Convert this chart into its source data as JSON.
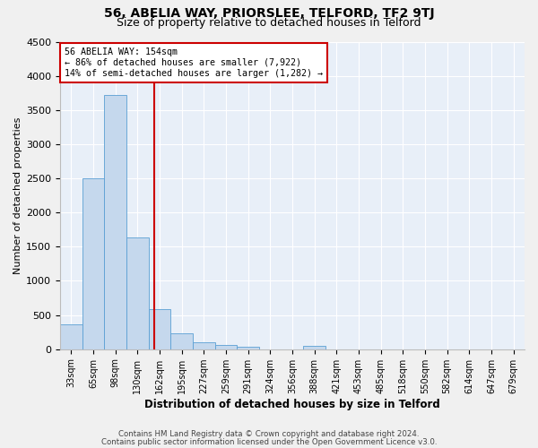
{
  "title": "56, ABELIA WAY, PRIORSLEE, TELFORD, TF2 9TJ",
  "subtitle": "Size of property relative to detached houses in Telford",
  "xlabel": "Distribution of detached houses by size in Telford",
  "ylabel": "Number of detached properties",
  "bin_labels": [
    "33sqm",
    "65sqm",
    "98sqm",
    "130sqm",
    "162sqm",
    "195sqm",
    "227sqm",
    "259sqm",
    "291sqm",
    "324sqm",
    "356sqm",
    "388sqm",
    "421sqm",
    "453sqm",
    "485sqm",
    "518sqm",
    "550sqm",
    "582sqm",
    "614sqm",
    "647sqm",
    "679sqm"
  ],
  "bar_values": [
    370,
    2500,
    3720,
    1630,
    590,
    230,
    105,
    60,
    35,
    0,
    0,
    55,
    0,
    0,
    0,
    0,
    0,
    0,
    0,
    0,
    0
  ],
  "bar_color": "#c5d8ed",
  "bar_edge_color": "#5a9fd4",
  "ylim": [
    0,
    4500
  ],
  "yticks": [
    0,
    500,
    1000,
    1500,
    2000,
    2500,
    3000,
    3500,
    4000,
    4500
  ],
  "property_label": "56 ABELIA WAY: 154sqm",
  "annotation_line1": "← 86% of detached houses are smaller (7,922)",
  "annotation_line2": "14% of semi-detached houses are larger (1,282) →",
  "vline_color": "#cc0000",
  "annotation_box_edge": "#cc0000",
  "footer_line1": "Contains HM Land Registry data © Crown copyright and database right 2024.",
  "footer_line2": "Contains public sector information licensed under the Open Government Licence v3.0.",
  "bg_color": "#e8eff8",
  "grid_color": "#ffffff",
  "title_fontsize": 10,
  "subtitle_fontsize": 9
}
